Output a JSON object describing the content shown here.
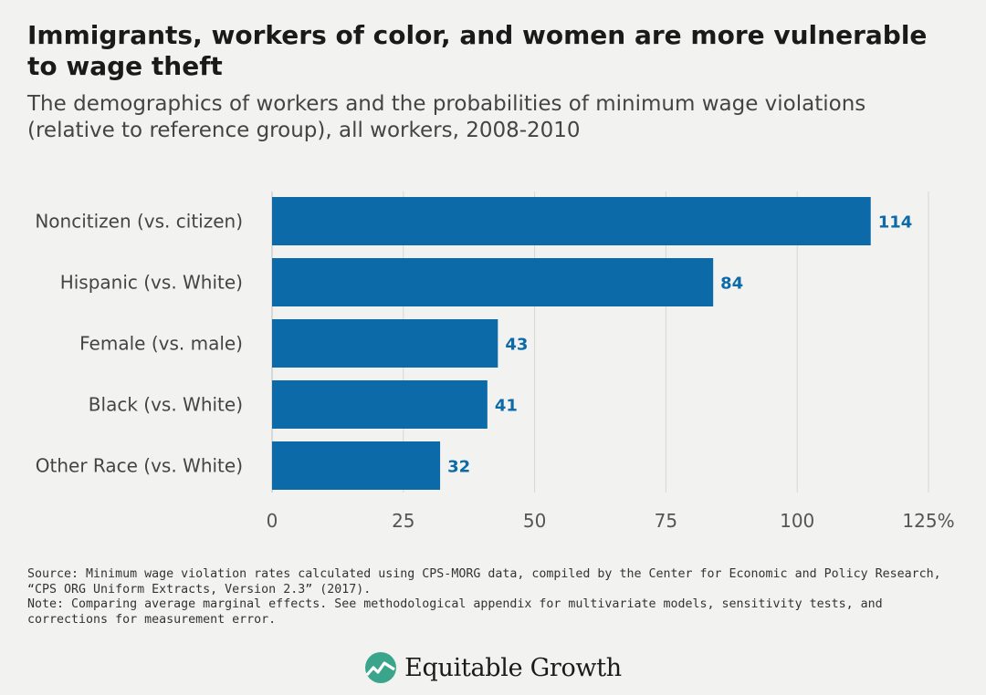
{
  "title": "Immigrants, workers of color, and women are more vulnerable to wage theft",
  "subtitle": "The demographics of workers and the probabilities of minimum wage violations (relative to reference group), all workers, 2008-2010",
  "chart_data": {
    "type": "bar",
    "orientation": "horizontal",
    "categories": [
      "Noncitizen (vs. citizen)",
      "Hispanic (vs. White)",
      "Female (vs. male)",
      "Black (vs. White)",
      "Other Race (vs. White)"
    ],
    "values": [
      114,
      84,
      43,
      41,
      32
    ],
    "data_labels": [
      "114",
      "84",
      "43",
      "41",
      "32"
    ],
    "xlim": [
      0,
      125
    ],
    "xticks": [
      0,
      25,
      50,
      75,
      100,
      125
    ],
    "xtick_labels": [
      "0",
      "25",
      "50",
      "75",
      "100",
      "125%"
    ],
    "grid": "vertical",
    "bar_color": "#0c6aa8",
    "label_color": "#0c6aa8"
  },
  "notes": {
    "source": "Source: Minimum wage violation rates calculated using CPS-MORG data, compiled by the Center for Economic and Policy Research, “CPS ORG Uniform Extracts, Version 2.3” (2017).",
    "note": "Note: Comparing average marginal effects. See methodological appendix for multivariate models, sensitivity tests, and corrections for measurement error."
  },
  "logo": {
    "name": "Equitable Growth",
    "icon": "equitable-growth-logo-icon",
    "icon_color": "#3aa58a"
  }
}
